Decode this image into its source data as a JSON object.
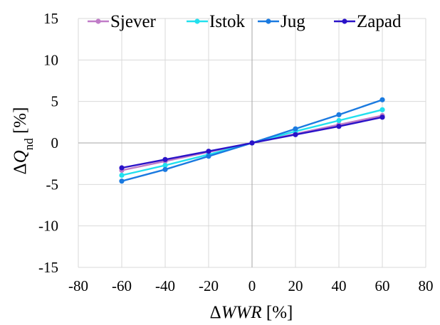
{
  "chart_data": {
    "type": "line",
    "xlabel": {
      "prefix": "Δ",
      "main": "WWR",
      "suffix": " [%]"
    },
    "ylabel": {
      "prefix": "Δ",
      "main": "Q",
      "sub": "nd",
      "suffix": " [%]"
    },
    "xlim": [
      -80,
      80
    ],
    "ylim": [
      -15,
      15
    ],
    "xticks": [
      -80,
      -60,
      -40,
      -20,
      0,
      20,
      40,
      60,
      80
    ],
    "yticks": [
      -15,
      -10,
      -5,
      0,
      5,
      10,
      15
    ],
    "grid": true,
    "legend_position": "top",
    "x": [
      -60,
      -40,
      -20,
      0,
      20,
      40,
      60
    ],
    "series": [
      {
        "name": "Sjever",
        "color": "#c07cc8",
        "values": [
          -3.3,
          -2.2,
          -1.1,
          0,
          1.1,
          2.2,
          3.3
        ]
      },
      {
        "name": "Istok",
        "color": "#22e0ee",
        "values": [
          -3.9,
          -2.7,
          -1.4,
          0,
          1.4,
          2.7,
          4.0
        ]
      },
      {
        "name": "Jug",
        "color": "#1a7ae0",
        "values": [
          -4.6,
          -3.2,
          -1.6,
          0,
          1.7,
          3.4,
          5.2
        ]
      },
      {
        "name": "Zapad",
        "color": "#2a12c8",
        "values": [
          -3.0,
          -2.0,
          -1.0,
          0,
          1.0,
          2.0,
          3.1
        ]
      }
    ]
  }
}
